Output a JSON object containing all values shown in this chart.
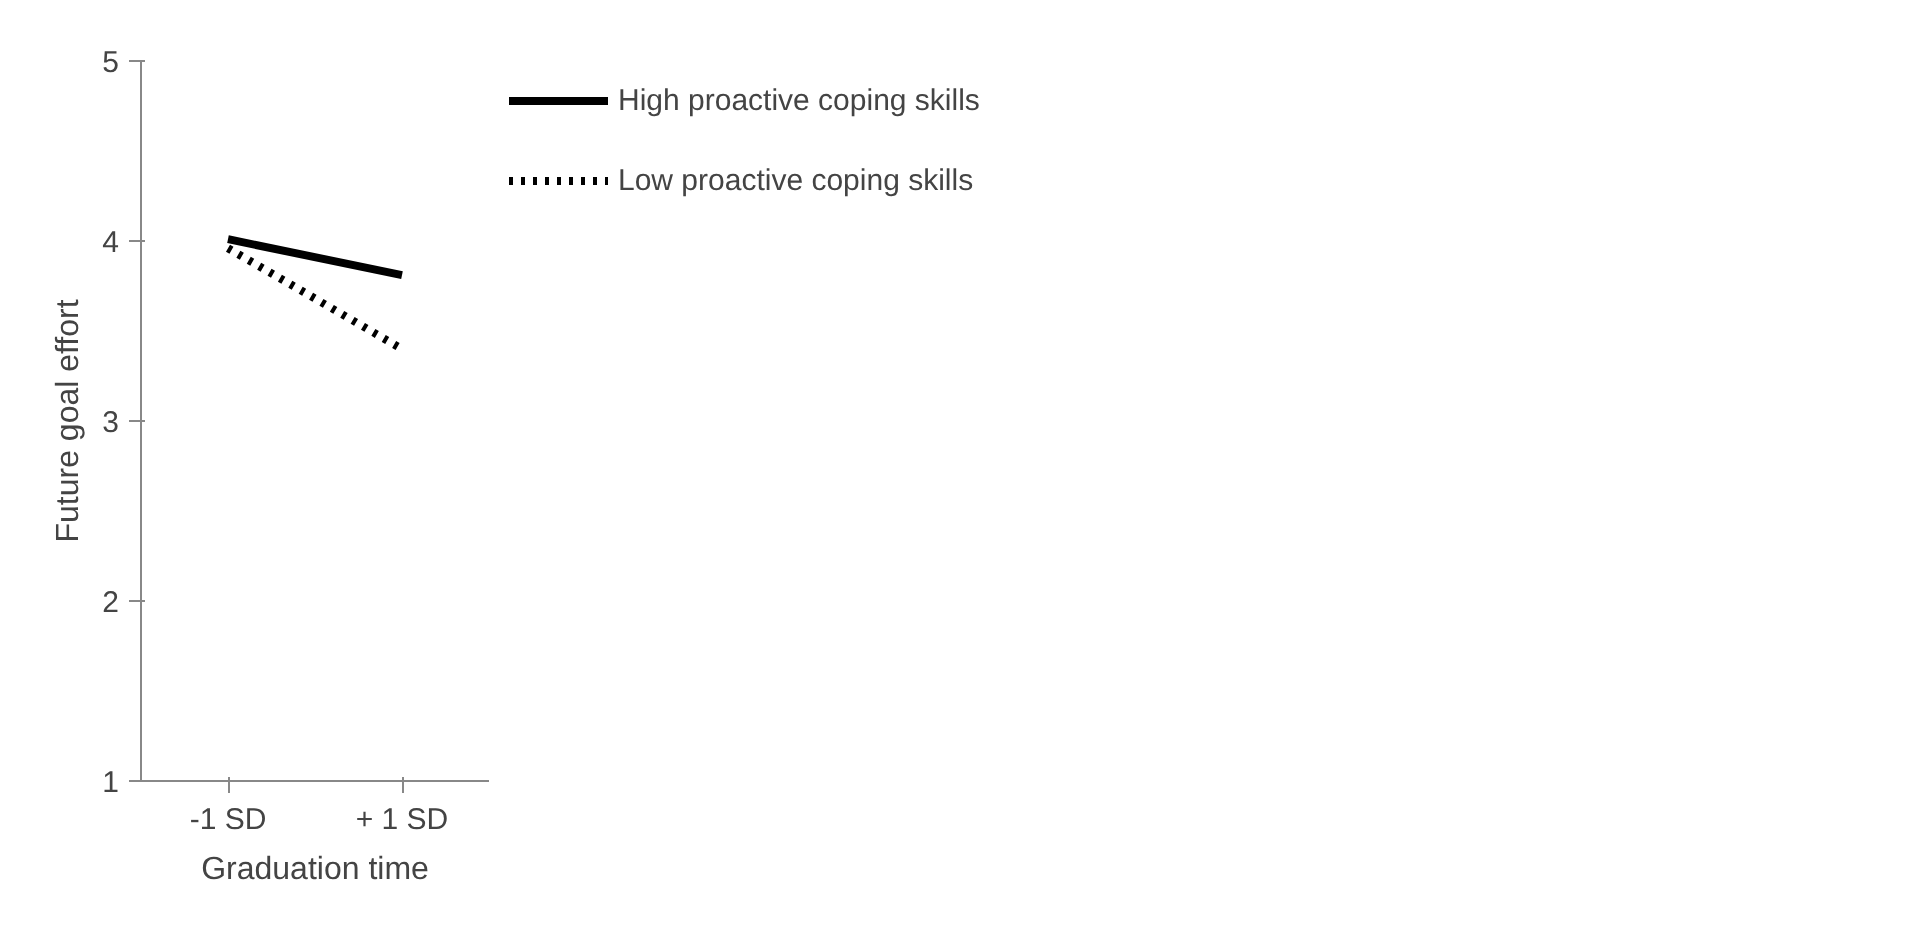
{
  "chart_data": {
    "type": "line",
    "xlabel": "Graduation time",
    "ylabel": "Future goal effort",
    "categories": [
      "-1 SD",
      "+ 1 SD"
    ],
    "series": [
      {
        "name": "High proactive coping skills",
        "color": "#000000",
        "values": [
          4.01,
          3.81
        ],
        "line_style": "solid"
      },
      {
        "name": "Low proactive coping skills",
        "color": "#000000",
        "values": [
          3.96,
          3.4
        ],
        "line_style": "dotted"
      }
    ],
    "ylim": [
      1,
      5
    ],
    "yticks": [
      1,
      2,
      3,
      4,
      5
    ],
    "grid": false,
    "legend": "right",
    "marker": "none"
  }
}
